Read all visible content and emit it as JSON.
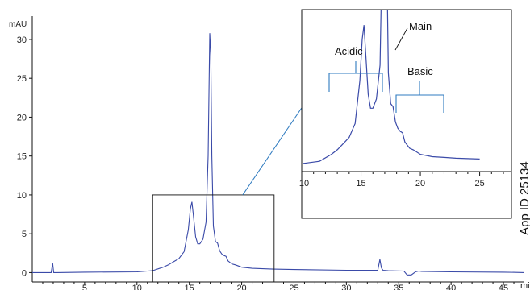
{
  "chart_data": {
    "type": "line",
    "ylabel": "mAU",
    "xlabel": "mi",
    "xlim": [
      0,
      47
    ],
    "ylim": [
      -1.2,
      33
    ],
    "yticks": [
      0,
      5,
      10,
      15,
      20,
      25,
      30
    ],
    "xticks": [
      5,
      10,
      15,
      20,
      25,
      30,
      35,
      40,
      45
    ],
    "series": [
      {
        "x": [
          0.0,
          1.8,
          1.95,
          2.0,
          2.05,
          2.3,
          5,
          10,
          11.5,
          12.5,
          13.0,
          13.5,
          14.0,
          14.5,
          14.9,
          15.1,
          15.25,
          15.4,
          15.6,
          15.8,
          16.0,
          16.3,
          16.6,
          16.8,
          16.95,
          17.05,
          17.15,
          17.3,
          17.5,
          17.7,
          17.9,
          18.1,
          18.3,
          18.5,
          18.7,
          18.9,
          19.1,
          19.4,
          20.0,
          21.0,
          22.0,
          23.0,
          25.0,
          30.0,
          33.0,
          33.2,
          33.35,
          33.5,
          34.0,
          35.5,
          35.8,
          36.2,
          36.6,
          36.9,
          37.2,
          40.0,
          45.0,
          47.0
        ],
        "y": [
          0.0,
          0.0,
          1.2,
          0.5,
          0.0,
          0.0,
          0.05,
          0.1,
          0.25,
          0.7,
          1.0,
          1.4,
          1.8,
          2.7,
          5.5,
          8.2,
          9.1,
          7.2,
          4.6,
          3.7,
          3.7,
          4.3,
          6.5,
          15.0,
          30.8,
          28.0,
          15.0,
          6.0,
          4.0,
          3.8,
          2.8,
          2.4,
          2.2,
          2.1,
          1.5,
          1.3,
          1.1,
          1.0,
          0.7,
          0.55,
          0.5,
          0.45,
          0.4,
          0.3,
          0.3,
          1.7,
          0.6,
          0.3,
          0.25,
          0.2,
          -0.3,
          -0.3,
          0.1,
          0.2,
          0.15,
          0.1,
          0.05,
          0.0
        ]
      }
    ],
    "inset": {
      "xlim": [
        10,
        27
      ],
      "ylim": [
        0,
        10
      ],
      "xticks": [
        10,
        15,
        20,
        25
      ],
      "annotations": {
        "main": "Main",
        "acidic": "Acidic",
        "basic": "Basic"
      }
    }
  },
  "vertical_text": "App ID 25134",
  "colors": {
    "trace": "#3a4aa8",
    "zoom_lines": "#2f7bc0",
    "bracket": "#2f7bc0",
    "frame": "#111111"
  }
}
